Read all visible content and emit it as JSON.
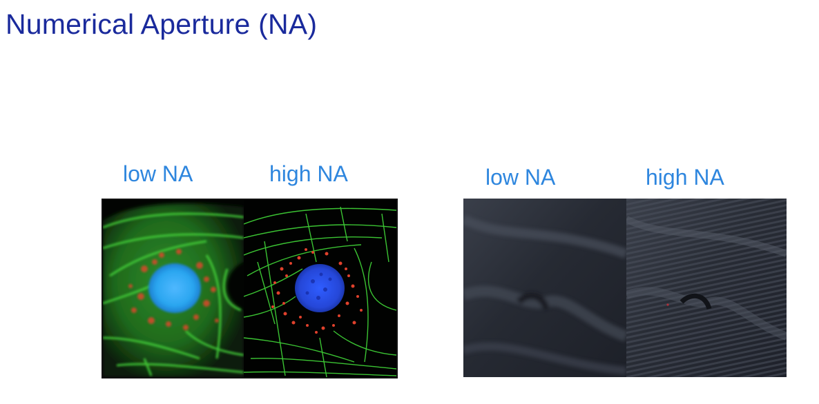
{
  "slide": {
    "title": "Numerical Aperture (NA)"
  },
  "left_comparison": {
    "low_label": "low NA",
    "high_label": "high NA"
  },
  "right_comparison": {
    "low_label": "low NA",
    "high_label": "high NA"
  },
  "colors": {
    "title": "#1a2a9c",
    "caption": "#2e86de",
    "actin_green": "#2ecc40",
    "mitochondria_red": "#e53b2c",
    "nucleus_blue": "#2f6bff",
    "fabric_dark": "#2a2e38"
  }
}
